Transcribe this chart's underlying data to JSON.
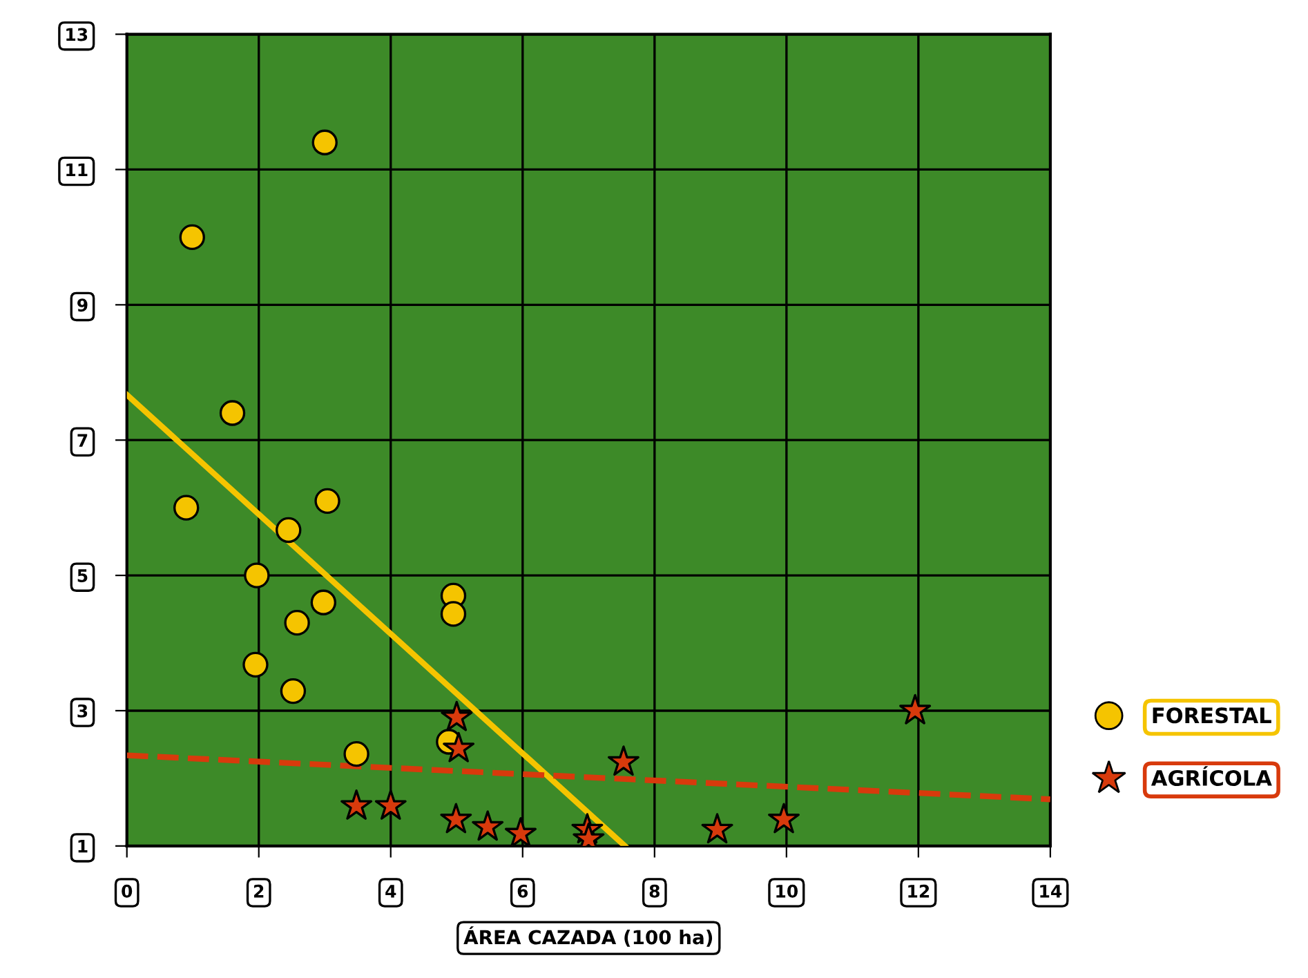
{
  "chart_data": {
    "type": "scatter",
    "xlabel": "ÁREA CAZADA (100 ha)",
    "xlim": [
      0,
      14
    ],
    "xticks": [
      0,
      2,
      4,
      6,
      8,
      10,
      12,
      14
    ],
    "ylim": [
      1,
      13
    ],
    "yticks": [
      1,
      3,
      5,
      7,
      9,
      11,
      13
    ],
    "grid": true,
    "legend": "right",
    "series": [
      {
        "name": "FORESTAL",
        "color": "#f5c400",
        "marker": "circle",
        "x": [
          3.0,
          0.99,
          1.6,
          0.9,
          3.04,
          2.45,
          1.97,
          2.98,
          2.58,
          4.95,
          4.95,
          1.95,
          2.52,
          3.48,
          4.88
        ],
        "values": [
          11.4,
          10.0,
          7.4,
          6.0,
          6.1,
          5.67,
          5.0,
          4.6,
          4.3,
          4.7,
          4.43,
          3.68,
          3.29,
          2.36,
          2.54
        ]
      },
      {
        "name": "AGRÍCOLA",
        "color": "#d83a0c",
        "marker": "star",
        "x": [
          5.0,
          5.03,
          3.48,
          4.0,
          4.99,
          5.47,
          5.97,
          6.98,
          7.0,
          7.53,
          8.95,
          9.96,
          11.95
        ],
        "values": [
          2.9,
          2.44,
          1.59,
          1.59,
          1.39,
          1.28,
          1.18,
          1.24,
          1.1,
          2.24,
          1.24,
          1.39,
          3.0
        ]
      },
      {
        "type": "line",
        "color": "#f5c400",
        "line_style": "solid",
        "x": [
          0,
          7.55
        ],
        "values": [
          7.67,
          1.0
        ]
      },
      {
        "type": "line",
        "color": "#d83a0c",
        "line_style": "dashed",
        "x": [
          0,
          14
        ],
        "values": [
          2.34,
          1.69
        ]
      }
    ]
  }
}
